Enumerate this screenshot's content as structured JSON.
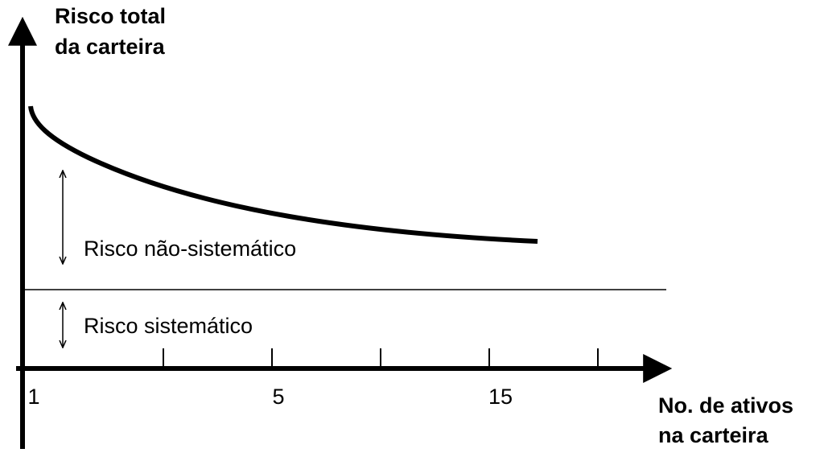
{
  "y_axis_label": [
    "Risco total",
    "da carteira"
  ],
  "x_axis_label": [
    "No. de ativos",
    "na carteira"
  ],
  "x_tick_labels": [
    "1",
    "5",
    "15"
  ],
  "annotations": {
    "unsystematic": "Risco não-sistemático",
    "systematic": "Risco sistemático"
  }
}
